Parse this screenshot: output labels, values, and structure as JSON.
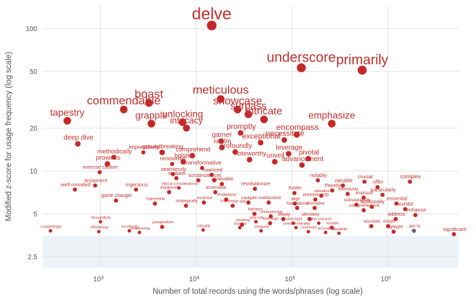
{
  "chart_data": {
    "type": "scatter",
    "xlabel": "Number of total records using the words/phrases (log scale)",
    "ylabel": "Modified z-score for usage frequency (log scale)",
    "x_scale": "log",
    "y_scale": "log",
    "xlim": [
      250,
      5500000
    ],
    "ylim": [
      2.1,
      145
    ],
    "x_ticks": [
      {
        "value": 1000,
        "base": "10",
        "exp": "3"
      },
      {
        "value": 10000,
        "base": "10",
        "exp": "4"
      },
      {
        "value": 100000,
        "base": "10",
        "exp": "5"
      },
      {
        "value": 1000000,
        "base": "10",
        "exp": "6"
      }
    ],
    "y_ticks": [
      {
        "value": 2.5,
        "label": "2.5"
      },
      {
        "value": 5,
        "label": "5"
      },
      {
        "value": 10,
        "label": "10"
      },
      {
        "value": 20,
        "label": "20"
      },
      {
        "value": 50,
        "label": "50"
      },
      {
        "value": 100,
        "label": "100"
      }
    ],
    "shaded_band": {
      "y_from": 2.1,
      "y_to": 3.5,
      "color": "#edf2f7"
    },
    "colors": {
      "point": "#c62828",
      "label": "#c0302e",
      "gray_point": "#5a6578",
      "gridline": "#e3e3e3",
      "axis_text": "#555555"
    },
    "grid": true,
    "points": [
      {
        "label": "delve",
        "x": 14500,
        "y": 105,
        "size": 7,
        "font": 24
      },
      {
        "label": "underscore",
        "x": 125000,
        "y": 53,
        "size": 6.5,
        "font": 20
      },
      {
        "label": "primarily",
        "x": 540000,
        "y": 51,
        "size": 6.5,
        "font": 20
      },
      {
        "label": "meticulous",
        "x": 18000,
        "y": 32,
        "size": 5.5,
        "font": 17
      },
      {
        "label": "boast",
        "x": 3200,
        "y": 30,
        "size": 5.5,
        "font": 17
      },
      {
        "label": "commendable",
        "x": 1750,
        "y": 27,
        "size": 5.5,
        "font": 17
      },
      {
        "label": "showcase",
        "x": 27000,
        "y": 27,
        "size": 5.5,
        "font": 16
      },
      {
        "label": "surpass",
        "x": 35000,
        "y": 25,
        "size": 5.5,
        "font": 15
      },
      {
        "label": "tapestry",
        "x": 450,
        "y": 22.5,
        "size": 5.5,
        "font": 14
      },
      {
        "label": "unlocking",
        "x": 7200,
        "y": 22,
        "size": 5.5,
        "font": 14
      },
      {
        "label": "grapple",
        "x": 3400,
        "y": 21.5,
        "size": 5.5,
        "font": 14
      },
      {
        "label": "intricacy",
        "x": 7900,
        "y": 20,
        "size": 5,
        "font": 13
      },
      {
        "label": "intricate",
        "x": 51000,
        "y": 23,
        "size": 5.5,
        "font": 15
      },
      {
        "label": "emphasize",
        "x": 260000,
        "y": 21.5,
        "size": 5.5,
        "font": 14
      },
      {
        "label": "encompass",
        "x": 112000,
        "y": 18,
        "size": 4.5,
        "font": 12
      },
      {
        "label": "promptly",
        "x": 29000,
        "y": 18.5,
        "size": 4,
        "font": 11
      },
      {
        "label": "necessitate",
        "x": 83000,
        "y": 16.5,
        "size": 4,
        "font": 11
      },
      {
        "label": "garner",
        "x": 18200,
        "y": 16.2,
        "size": 4,
        "font": 10
      },
      {
        "label": "exceptional",
        "x": 47000,
        "y": 15.8,
        "size": 4,
        "font": 11
      },
      {
        "label": "deep dive",
        "x": 580,
        "y": 15.5,
        "size": 4,
        "font": 10
      },
      {
        "label": "realm",
        "x": 18500,
        "y": 14.6,
        "size": 4,
        "font": 10
      },
      {
        "label": "impressively",
        "x": 2800,
        "y": 13.5,
        "size": 3,
        "font": 8
      },
      {
        "label": "groundbreaking",
        "x": 4400,
        "y": 13.5,
        "size": 4,
        "font": 8.5
      },
      {
        "label": "profoundly",
        "x": 25500,
        "y": 13.6,
        "size": 4,
        "font": 10
      },
      {
        "label": "leverage",
        "x": 92000,
        "y": 13.2,
        "size": 4,
        "font": 10
      },
      {
        "label": "comprehend",
        "x": 9100,
        "y": 12.8,
        "size": 4,
        "font": 9
      },
      {
        "label": "methodically",
        "x": 1380,
        "y": 12.5,
        "size": 3.5,
        "font": 9
      },
      {
        "label": "pivotal",
        "x": 148000,
        "y": 12.2,
        "size": 4,
        "font": 10
      },
      {
        "label": "noteworthy",
        "x": 36000,
        "y": 12,
        "size": 4,
        "font": 9.5
      },
      {
        "label": "bolster",
        "x": 7300,
        "y": 11.6,
        "size": 4,
        "font": 9
      },
      {
        "label": "unveil",
        "x": 66000,
        "y": 11.6,
        "size": 4,
        "font": 10
      },
      {
        "label": "prowess",
        "x": 1180,
        "y": 11.2,
        "size": 4,
        "font": 9.5
      },
      {
        "label": "renowned",
        "x": 5600,
        "y": 11.2,
        "size": 3,
        "font": 8.5
      },
      {
        "label": "advancement",
        "x": 127000,
        "y": 11,
        "size": 4,
        "font": 10
      },
      {
        "label": "transformative",
        "x": 11500,
        "y": 10.5,
        "size": 3,
        "font": 8.5
      },
      {
        "label": "exercise caution",
        "x": 980,
        "y": 9.8,
        "size": 3,
        "font": 7
      },
      {
        "label": "seamlessly",
        "x": 5700,
        "y": 9.5,
        "size": 3,
        "font": 7.5
      },
      {
        "label": "nuanced",
        "x": 14500,
        "y": 9.4,
        "size": 3,
        "font": 7.5
      },
      {
        "label": "embark",
        "x": 6200,
        "y": 8.9,
        "size": 3,
        "font": 7.5
      },
      {
        "label": "scrutinize",
        "x": 10500,
        "y": 8.6,
        "size": 3,
        "font": 7.5
      },
      {
        "label": "excel",
        "x": 15400,
        "y": 8.6,
        "size": 3,
        "font": 7.5
      },
      {
        "label": "notably",
        "x": 186000,
        "y": 8.6,
        "size": 3,
        "font": 7.5
      },
      {
        "label": "crucial",
        "x": 570000,
        "y": 8.4,
        "size": 3,
        "font": 7.5
      },
      {
        "label": "complex",
        "x": 1700000,
        "y": 8.4,
        "size": 3,
        "font": 8
      },
      {
        "label": "testament",
        "x": 880,
        "y": 7.9,
        "size": 3,
        "font": 7.5
      },
      {
        "label": "invaluable",
        "x": 18500,
        "y": 8.1,
        "size": 3,
        "font": 7
      },
      {
        "label": "valuable",
        "x": 340000,
        "y": 7.9,
        "size": 3,
        "font": 7
      },
      {
        "label": "offer",
        "x": 780000,
        "y": 7.7,
        "size": 3,
        "font": 7.5
      },
      {
        "label": "well-rounded",
        "x": 540,
        "y": 7.4,
        "size": 3,
        "font": 7.5
      },
      {
        "label": "ingenious",
        "x": 2350,
        "y": 7.4,
        "size": 3,
        "font": 7.5
      },
      {
        "label": "ethical considerations",
        "x": 6600,
        "y": 7.6,
        "size": 2.5,
        "font": 5.5
      },
      {
        "label": "revolutionize",
        "x": 41000,
        "y": 7.5,
        "size": 3,
        "font": 7.5
      },
      {
        "label": "thereby",
        "x": 263000,
        "y": 7.3,
        "size": 3,
        "font": 7
      },
      {
        "label": "expansive",
        "x": 5200,
        "y": 7.1,
        "size": 3,
        "font": 6
      },
      {
        "label": "actionable",
        "x": 15800,
        "y": 7.1,
        "size": 3,
        "font": 6.5
      },
      {
        "label": "foster",
        "x": 106000,
        "y": 7,
        "size": 3,
        "font": 7.5
      },
      {
        "label": "effectively",
        "x": 381000,
        "y": 6.9,
        "size": 3,
        "font": 6.5
      },
      {
        "label": "particularly",
        "x": 880000,
        "y": 6.8,
        "size": 3,
        "font": 7.5
      },
      {
        "label": "utilization",
        "x": 202000,
        "y": 6.7,
        "size": 3,
        "font": 5.5
      },
      {
        "label": "emphasis",
        "x": 560000,
        "y": 6.5,
        "size": 3,
        "font": 6
      },
      {
        "label": "game changer",
        "x": 1450,
        "y": 6.2,
        "size": 3,
        "font": 7
      },
      {
        "label": "endeavor",
        "x": 20500,
        "y": 6.3,
        "size": 3,
        "font": 6.5
      },
      {
        "label": "predominantly",
        "x": 175000,
        "y": 6.3,
        "size": 3,
        "font": 6
      },
      {
        "label": "transcend",
        "x": 3700,
        "y": 5.9,
        "size": 3,
        "font": 6
      },
      {
        "label": "essence",
        "x": 12000,
        "y": 6,
        "size": 3,
        "font": 6
      },
      {
        "label": "navigate",
        "x": 35000,
        "y": 6,
        "size": 3,
        "font": 6
      },
      {
        "label": "multifaceted",
        "x": 57000,
        "y": 6,
        "size": 3,
        "font": 6
      },
      {
        "label": "strategically",
        "x": 7800,
        "y": 5.7,
        "size": 3,
        "font": 6
      },
      {
        "label": "knowledge gap",
        "x": 24000,
        "y": 5.7,
        "size": 3,
        "font": 5.5
      },
      {
        "label": "align",
        "x": 107000,
        "y": 5.9,
        "size": 3,
        "font": 6
      },
      {
        "label": "subsequently",
        "x": 470000,
        "y": 5.8,
        "size": 3,
        "font": 6.5
      },
      {
        "label": "essential",
        "x": 1230000,
        "y": 5.9,
        "size": 3,
        "font": 7.5
      },
      {
        "label": "additionally",
        "x": 680000,
        "y": 5.6,
        "size": 3,
        "font": 7
      },
      {
        "label": "exhibit",
        "x": 1520000,
        "y": 5.4,
        "size": 3,
        "font": 7.5
      },
      {
        "label": "foundational",
        "x": 113000,
        "y": 5.5,
        "size": 3,
        "font": 6
      },
      {
        "label": "innovative",
        "x": 172000,
        "y": 5.5,
        "size": 3,
        "font": 6
      },
      {
        "label": "comprehensive",
        "x": 560000,
        "y": 5.3,
        "size": 3,
        "font": 6.5
      },
      {
        "label": "enhance",
        "x": 1940000,
        "y": 4.9,
        "size": 3,
        "font": 7.5
      },
      {
        "label": "harness",
        "x": 40500,
        "y": 5,
        "size": 3,
        "font": 6
      },
      {
        "label": "underpinning",
        "x": 60000,
        "y": 4.8,
        "size": 3,
        "font": 5.5
      },
      {
        "label": "address",
        "x": 1210000,
        "y": 4.6,
        "size": 3,
        "font": 7
      },
      {
        "label": "thoughtfully",
        "x": 1000,
        "y": 4.4,
        "size": 2.5,
        "font": 5.5
      },
      {
        "label": "deeply",
        "x": 81000,
        "y": 4.6,
        "size": 3,
        "font": 6
      },
      {
        "label": "ultimately",
        "x": 153000,
        "y": 4.6,
        "size": 3,
        "font": 6
      },
      {
        "label": "vital role",
        "x": 42000,
        "y": 4.4,
        "size": 2.5,
        "font": 5.5
      },
      {
        "label": "thorough",
        "x": 59000,
        "y": 4.3,
        "size": 3,
        "font": 5.5
      },
      {
        "label": "shed light",
        "x": 103000,
        "y": 4.3,
        "size": 2.5,
        "font": 5.5
      },
      {
        "label": "showing",
        "x": 30000,
        "y": 4.2,
        "size": 3,
        "font": 5.5
      },
      {
        "label": "further research",
        "x": 190000,
        "y": 4.3,
        "size": 2.5,
        "font": 5
      },
      {
        "label": "elucidate",
        "x": 672000,
        "y": 4.1,
        "size": 3,
        "font": 6
      },
      {
        "label": "insight",
        "x": 1010000,
        "y": 4.1,
        "size": 3,
        "font": 6
      },
      {
        "label": "juxtaposition",
        "x": 4400,
        "y": 4.05,
        "size": 3,
        "font": 5.5
      },
      {
        "label": "journey",
        "x": 28500,
        "y": 4,
        "size": 2.5,
        "font": 5.5
      },
      {
        "label": "complex interplay",
        "x": 110000,
        "y": 4,
        "size": 2.5,
        "font": 5
      },
      {
        "label": "notable",
        "x": 260000,
        "y": 4,
        "size": 3,
        "font": 5.5
      },
      {
        "label": "compellingly",
        "x": 300,
        "y": 3.8,
        "size": 2.5,
        "font": 5.5
      },
      {
        "label": "effortlessly",
        "x": 960,
        "y": 3.75,
        "size": 2.5,
        "font": 5.5
      },
      {
        "label": "excellently",
        "x": 2000,
        "y": 3.8,
        "size": 2.5,
        "font": 5.5
      },
      {
        "label": "unwavering",
        "x": 2550,
        "y": 3.7,
        "size": 2.5,
        "font": 5.5
      },
      {
        "label": "robustly",
        "x": 11800,
        "y": 3.85,
        "size": 2.5,
        "font": 5.5
      },
      {
        "label": "intrigued",
        "x": 47500,
        "y": 3.8,
        "size": 2.5,
        "font": 5.5
      },
      {
        "label": "summary",
        "x": 148000,
        "y": 3.75,
        "size": 2.5,
        "font": 5.5
      },
      {
        "label": "accurately",
        "x": 224000,
        "y": 3.7,
        "size": 2.5,
        "font": 5.5
      },
      {
        "label": "capability",
        "x": 309000,
        "y": 3.65,
        "size": 2.5,
        "font": 5.5
      },
      {
        "label": "highlight",
        "x": 1150000,
        "y": 3.75,
        "size": 3,
        "font": 6.5
      },
      {
        "label": "aim to",
        "x": 1870000,
        "y": 3.8,
        "size": 3,
        "font": 6,
        "gray": true
      },
      {
        "label": "significant",
        "x": 4900000,
        "y": 3.6,
        "size": 3,
        "font": 7.5
      }
    ]
  }
}
